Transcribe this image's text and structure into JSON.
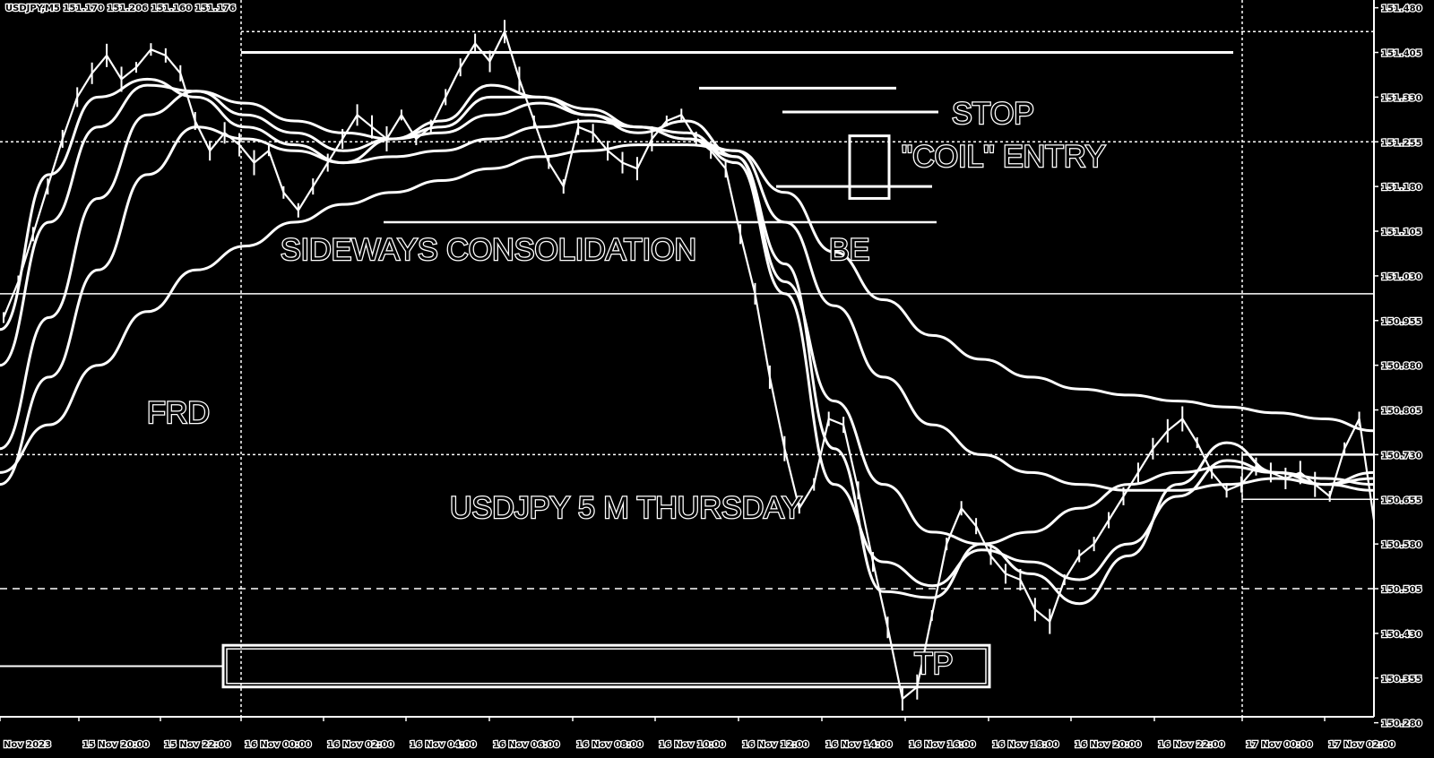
{
  "chart_data": {
    "type": "line",
    "title": "",
    "header": "USDJPY,M5  151.170 151.206 151.160 151.176",
    "xlabel": "",
    "ylabel": "",
    "ylim": [
      150.29,
      151.49
    ],
    "grid": true,
    "x_ticks": [
      "Nov 2023",
      "15 Nov 20:00",
      "15 Nov 22:00",
      "16 Nov 00:00",
      "16 Nov 02:00",
      "16 Nov 04:00",
      "16 Nov 06:00",
      "16 Nov 08:00",
      "16 Nov 10:00",
      "16 Nov 12:00",
      "16 Nov 14:00",
      "16 Nov 16:00",
      "16 Nov 18:00",
      "16 Nov 20:00",
      "16 Nov 22:00",
      "17 Nov 00:00",
      "17 Nov 02:00"
    ],
    "y_ticks": [
      "151.480",
      "151.405",
      "151.330",
      "151.255",
      "151.180",
      "151.105",
      "151.030",
      "150.955",
      "150.880",
      "150.805",
      "150.730",
      "150.655",
      "150.580",
      "150.505",
      "150.430",
      "150.355",
      "150.280"
    ],
    "price": [
      150.96,
      151.02,
      151.1,
      151.18,
      151.26,
      151.33,
      151.37,
      151.4,
      151.36,
      151.38,
      151.41,
      151.4,
      151.37,
      151.29,
      151.24,
      151.27,
      151.25,
      151.22,
      151.24,
      151.17,
      151.14,
      151.18,
      151.22,
      151.26,
      151.3,
      151.28,
      151.26,
      151.3,
      151.26,
      151.28,
      151.33,
      151.38,
      151.42,
      151.39,
      151.44,
      151.36,
      151.29,
      151.22,
      151.18,
      151.28,
      151.27,
      151.24,
      151.22,
      151.21,
      151.26,
      151.29,
      151.3,
      151.26,
      151.24,
      151.21,
      151.1,
      151.0,
      150.86,
      150.74,
      150.64,
      150.68,
      150.79,
      150.78,
      150.67,
      150.55,
      150.44,
      150.32,
      150.34,
      150.46,
      150.58,
      150.64,
      150.61,
      150.56,
      150.53,
      150.52,
      150.47,
      150.45,
      150.52,
      150.56,
      150.58,
      150.62,
      150.66,
      150.7,
      150.74,
      150.77,
      150.79,
      150.75,
      150.7,
      150.67,
      150.68,
      150.71,
      150.7,
      150.69,
      150.7,
      150.68,
      150.66,
      150.74,
      150.79,
      150.62
    ],
    "moving_averages": [
      {
        "values": [
          150.94,
          151.2,
          151.33,
          151.36,
          151.33,
          151.28,
          151.25,
          151.22,
          151.26,
          151.29,
          151.35,
          151.33,
          151.3,
          151.27,
          151.29,
          151.23,
          151.05,
          150.74,
          150.5,
          150.49,
          150.58,
          150.53,
          150.48,
          150.56,
          150.68,
          150.75,
          150.7,
          150.68,
          150.7
        ]
      },
      {
        "values": [
          150.88,
          151.12,
          151.28,
          151.35,
          151.34,
          151.3,
          151.27,
          151.24,
          151.26,
          151.28,
          151.33,
          151.33,
          151.31,
          151.28,
          151.27,
          151.22,
          151.0,
          150.68,
          150.55,
          150.51,
          150.57,
          150.55,
          150.52,
          150.58,
          150.66,
          150.72,
          150.7,
          150.68,
          150.69
        ]
      },
      {
        "values": [
          150.74,
          150.96,
          151.16,
          151.3,
          151.34,
          151.32,
          151.29,
          151.27,
          151.26,
          151.27,
          151.3,
          151.32,
          151.3,
          151.28,
          151.26,
          151.23,
          151.02,
          150.82,
          150.68,
          150.6,
          150.58,
          150.6,
          150.64,
          150.68,
          150.7,
          150.71,
          150.7,
          150.69,
          150.68
        ]
      },
      {
        "values": [
          150.68,
          150.86,
          151.04,
          151.2,
          151.28,
          151.26,
          151.24,
          151.22,
          151.23,
          151.24,
          151.26,
          151.28,
          151.29,
          151.28,
          151.26,
          151.24,
          151.12,
          150.98,
          150.86,
          150.78,
          150.73,
          150.7,
          150.68,
          150.67,
          150.67,
          150.68,
          150.69,
          150.68,
          150.67
        ]
      },
      {
        "values": [
          150.7,
          150.78,
          150.88,
          150.97,
          151.04,
          151.08,
          151.12,
          151.15,
          151.17,
          151.19,
          151.21,
          151.23,
          151.24,
          151.25,
          151.25,
          151.24,
          151.17,
          151.07,
          150.99,
          150.93,
          150.89,
          150.86,
          150.84,
          150.83,
          150.82,
          150.81,
          150.8,
          150.79,
          150.77
        ]
      }
    ],
    "levels": {
      "top_dotted": 151.44,
      "range_high": 151.405,
      "stop_line_a": 151.345,
      "stop": 151.305,
      "coil_entry": 151.18,
      "consolidation_low": 151.12,
      "solid_mid": 151.0,
      "dotted_mid": 150.73,
      "dashed_low": 150.505,
      "bottom_dotted": 150.29,
      "tp_zone": [
        150.34,
        150.41
      ],
      "right_box": [
        150.655,
        150.73
      ]
    },
    "annotations": {
      "stop": "STOP",
      "coil_entry": "\"COIL\" ENTRY",
      "consolidation": "SIDEWAYS CONSOLIDATION",
      "be": "BE",
      "frd": "FRD",
      "caption": "USDJPY 5 M THURSDAY",
      "tp": "TP"
    }
  }
}
